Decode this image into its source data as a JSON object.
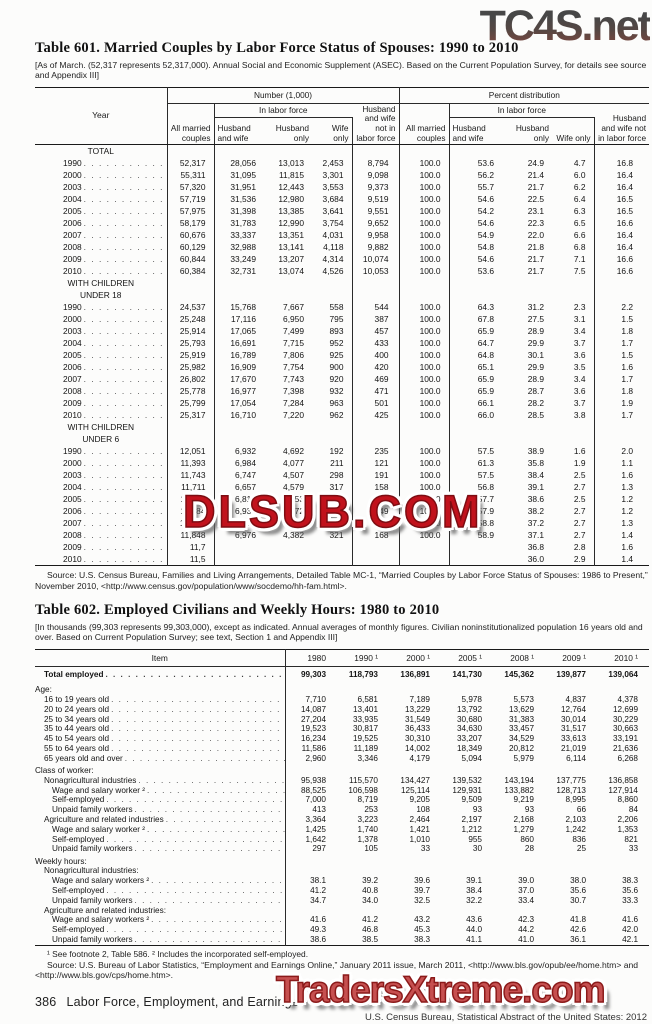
{
  "watermarks": {
    "top": "TC4S.net",
    "middle": "DLSUB.COM",
    "bottom": "TradersXtreme.com"
  },
  "colors": {
    "watermark_red": "#c1121c",
    "watermark_pink_red": "#c65050",
    "watermark_gray": "#3a3a3a",
    "watermark_maroon": "#6e3a32"
  },
  "table601": {
    "title": "Table 601. Married Couples by Labor Force Status of Spouses: 1990 to 2010",
    "note": "[As of March. (52,317 represents 52,317,000). Annual Social and Economic Supplement (ASEC). Based on the Current Population Survey, for details see source and Appendix III]",
    "header": {
      "year": "Year",
      "group_number": "Number (1,000)",
      "group_percent": "Percent distribution",
      "in_labor_force": "In labor force",
      "all_married": "All married couples",
      "husband_and_wife": "Husband and wife",
      "husband_only": "Husband only",
      "wife_only": "Wife only",
      "not_in_labor_force": "Husband and wife not in labor force"
    },
    "sections": [
      {
        "label": [
          "TOTAL"
        ],
        "rows": [
          [
            "1990",
            "52,317",
            "28,056",
            "13,013",
            "2,453",
            "8,794",
            "100.0",
            "53.6",
            "24.9",
            "4.7",
            "16.8"
          ],
          [
            "2000",
            "55,311",
            "31,095",
            "11,815",
            "3,301",
            "9,098",
            "100.0",
            "56.2",
            "21.4",
            "6.0",
            "16.4"
          ],
          [
            "2003",
            "57,320",
            "31,951",
            "12,443",
            "3,553",
            "9,373",
            "100.0",
            "55.7",
            "21.7",
            "6.2",
            "16.4"
          ],
          [
            "2004",
            "57,719",
            "31,536",
            "12,980",
            "3,684",
            "9,519",
            "100.0",
            "54.6",
            "22.5",
            "6.4",
            "16.5"
          ],
          [
            "2005",
            "57,975",
            "31,398",
            "13,385",
            "3,641",
            "9,551",
            "100.0",
            "54.2",
            "23.1",
            "6.3",
            "16.5"
          ],
          [
            "2006",
            "58,179",
            "31,783",
            "12,990",
            "3,754",
            "9,652",
            "100.0",
            "54.6",
            "22.3",
            "6.5",
            "16.6"
          ],
          [
            "2007",
            "60,676",
            "33,337",
            "13,351",
            "4,031",
            "9,958",
            "100.0",
            "54.9",
            "22.0",
            "6.6",
            "16.4"
          ],
          [
            "2008",
            "60,129",
            "32,988",
            "13,141",
            "4,118",
            "9,882",
            "100.0",
            "54.8",
            "21.8",
            "6.8",
            "16.4"
          ],
          [
            "2009",
            "60,844",
            "33,249",
            "13,207",
            "4,314",
            "10,074",
            "100.0",
            "54.6",
            "21.7",
            "7.1",
            "16.6"
          ],
          [
            "2010",
            "60,384",
            "32,731",
            "13,074",
            "4,526",
            "10,053",
            "100.0",
            "53.6",
            "21.7",
            "7.5",
            "16.6"
          ]
        ]
      },
      {
        "label": [
          "WITH CHILDREN",
          "UNDER 18"
        ],
        "rows": [
          [
            "1990",
            "24,537",
            "15,768",
            "7,667",
            "558",
            "544",
            "100.0",
            "64.3",
            "31.2",
            "2.3",
            "2.2"
          ],
          [
            "2000",
            "25,248",
            "17,116",
            "6,950",
            "795",
            "387",
            "100.0",
            "67.8",
            "27.5",
            "3.1",
            "1.5"
          ],
          [
            "2003",
            "25,914",
            "17,065",
            "7,499",
            "893",
            "457",
            "100.0",
            "65.9",
            "28.9",
            "3.4",
            "1.8"
          ],
          [
            "2004",
            "25,793",
            "16,691",
            "7,715",
            "952",
            "433",
            "100.0",
            "64.7",
            "29.9",
            "3.7",
            "1.7"
          ],
          [
            "2005",
            "25,919",
            "16,789",
            "7,806",
            "925",
            "400",
            "100.0",
            "64.8",
            "30.1",
            "3.6",
            "1.5"
          ],
          [
            "2006",
            "25,982",
            "16,909",
            "7,754",
            "900",
            "420",
            "100.0",
            "65.1",
            "29.9",
            "3.5",
            "1.6"
          ],
          [
            "2007",
            "26,802",
            "17,670",
            "7,743",
            "920",
            "469",
            "100.0",
            "65.9",
            "28.9",
            "3.4",
            "1.7"
          ],
          [
            "2008",
            "25,778",
            "16,977",
            "7,398",
            "932",
            "471",
            "100.0",
            "65.9",
            "28.7",
            "3.6",
            "1.8"
          ],
          [
            "2009",
            "25,799",
            "17,054",
            "7,284",
            "963",
            "501",
            "100.0",
            "66.1",
            "28.2",
            "3.7",
            "1.9"
          ],
          [
            "2010",
            "25,317",
            "16,710",
            "7,220",
            "962",
            "425",
            "100.0",
            "66.0",
            "28.5",
            "3.8",
            "1.7"
          ]
        ]
      },
      {
        "label": [
          "WITH CHILDREN",
          "UNDER 6"
        ],
        "rows": [
          [
            "1990",
            "12,051",
            "6,932",
            "4,692",
            "192",
            "235",
            "100.0",
            "57.5",
            "38.9",
            "1.6",
            "2.0"
          ],
          [
            "2000",
            "11,393",
            "6,984",
            "4,077",
            "211",
            "121",
            "100.0",
            "61.3",
            "35.8",
            "1.9",
            "1.1"
          ],
          [
            "2003",
            "11,743",
            "6,747",
            "4,507",
            "298",
            "191",
            "100.0",
            "57.5",
            "38.4",
            "2.5",
            "1.6"
          ],
          [
            "2004",
            "11,711",
            "6,657",
            "4,579",
            "317",
            "158",
            "100.0",
            "56.8",
            "39.1",
            "2.7",
            "1.3"
          ],
          [
            "2005",
            "11,802",
            "6,813",
            "4,553",
            "299",
            "137",
            "100.0",
            "57.7",
            "38.6",
            "2.5",
            "1.2"
          ],
          [
            "2006",
            "11,984",
            "6,939",
            "4,572",
            "324",
            "149",
            "100.0",
            "57.9",
            "38.2",
            "2.7",
            "1.2"
          ],
          [
            "2007",
            "12,468",
            "7,337",
            "4,633",
            "331",
            "167",
            "100.0",
            "58.8",
            "37.2",
            "2.7",
            "1.3"
          ],
          [
            "2008",
            "11,848",
            "6,976",
            "4,382",
            "321",
            "168",
            "100.0",
            "58.9",
            "37.1",
            "2.7",
            "1.4"
          ],
          [
            "2009",
            "11,7",
            "",
            "",
            "",
            "",
            "",
            "",
            "36.8",
            "2.8",
            "1.6"
          ],
          [
            "2010",
            "11,5",
            "",
            "",
            "",
            "",
            "",
            "",
            "36.0",
            "2.9",
            "1.4"
          ]
        ]
      }
    ],
    "source": "Source: U.S. Census Bureau, Families and Living Arrangements, Detailed Table MC-1, “Married Couples by Labor Force Status of Spouses: 1986 to Present,” November 2010, <http://www.census.gov/population/www/socdemo/hh-fam.html>."
  },
  "table602": {
    "title": "Table 602. Employed Civilians and Weekly Hours: 1980 to 2010",
    "note": "[In thousands (99,303 represents 99,303,000), except as indicated. Annual averages of monthly figures. Civilian noninstitutionalized population 16 years old and over. Based on Current Population Survey; see text, Section 1 and Appendix III]",
    "headers": [
      "Item",
      "1980",
      "1990 ¹",
      "2000 ¹",
      "2005 ¹",
      "2008 ¹",
      "2009 ¹",
      "2010 ¹"
    ],
    "rows": [
      {
        "l": "Total employed",
        "i": 1,
        "b": true,
        "v": [
          "99,303",
          "118,793",
          "136,891",
          "141,730",
          "145,362",
          "139,877",
          "139,064"
        ]
      },
      {
        "l": "Age:",
        "i": 0,
        "v": []
      },
      {
        "l": "16 to 19 years old",
        "i": 1,
        "v": [
          "7,710",
          "6,581",
          "7,189",
          "5,978",
          "5,573",
          "4,837",
          "4,378"
        ]
      },
      {
        "l": "20 to 24 years old",
        "i": 1,
        "v": [
          "14,087",
          "13,401",
          "13,229",
          "13,792",
          "13,629",
          "12,764",
          "12,699"
        ]
      },
      {
        "l": "25 to 34 years old",
        "i": 1,
        "v": [
          "27,204",
          "33,935",
          "31,549",
          "30,680",
          "31,383",
          "30,014",
          "30,229"
        ]
      },
      {
        "l": "35 to 44 years old",
        "i": 1,
        "v": [
          "19,523",
          "30,817",
          "36,433",
          "34,630",
          "33,457",
          "31,517",
          "30,663"
        ]
      },
      {
        "l": "45 to 54 years old",
        "i": 1,
        "v": [
          "16,234",
          "19,525",
          "30,310",
          "33,207",
          "34,529",
          "33,613",
          "33,191"
        ]
      },
      {
        "l": "55 to 64 years old",
        "i": 1,
        "v": [
          "11,586",
          "11,189",
          "14,002",
          "18,349",
          "20,812",
          "21,019",
          "21,636"
        ]
      },
      {
        "l": "65 years old and over",
        "i": 1,
        "v": [
          "2,960",
          "3,346",
          "4,179",
          "5,094",
          "5,979",
          "6,114",
          "6,268"
        ]
      },
      {
        "l": "Class of worker:",
        "i": 0,
        "v": []
      },
      {
        "l": "Nonagricultural industries",
        "i": 1,
        "v": [
          "95,938",
          "115,570",
          "134,427",
          "139,532",
          "143,194",
          "137,775",
          "136,858"
        ]
      },
      {
        "l": "Wage and salary worker ²",
        "i": 2,
        "v": [
          "88,525",
          "106,598",
          "125,114",
          "129,931",
          "133,882",
          "128,713",
          "127,914"
        ]
      },
      {
        "l": "Self-employed",
        "i": 2,
        "v": [
          "7,000",
          "8,719",
          "9,205",
          "9,509",
          "9,219",
          "8,995",
          "8,860"
        ]
      },
      {
        "l": "Unpaid family workers",
        "i": 2,
        "v": [
          "413",
          "253",
          "108",
          "93",
          "93",
          "66",
          "84"
        ]
      },
      {
        "l": "Agriculture and related industries",
        "i": 1,
        "v": [
          "3,364",
          "3,223",
          "2,464",
          "2,197",
          "2,168",
          "2,103",
          "2,206"
        ]
      },
      {
        "l": "Wage and salary worker ²",
        "i": 2,
        "v": [
          "1,425",
          "1,740",
          "1,421",
          "1,212",
          "1,279",
          "1,242",
          "1,353"
        ]
      },
      {
        "l": "Self-employed",
        "i": 2,
        "v": [
          "1,642",
          "1,378",
          "1,010",
          "955",
          "860",
          "836",
          "821"
        ]
      },
      {
        "l": "Unpaid family workers",
        "i": 2,
        "v": [
          "297",
          "105",
          "33",
          "30",
          "28",
          "25",
          "33"
        ]
      },
      {
        "l": "Weekly hours:",
        "i": 0,
        "v": []
      },
      {
        "l": "Nonagricultural industries:",
        "i": 1,
        "v": []
      },
      {
        "l": "Wage and salary workers ²",
        "i": 2,
        "v": [
          "38.1",
          "39.2",
          "39.6",
          "39.1",
          "39.0",
          "38.0",
          "38.3"
        ]
      },
      {
        "l": "Self-employed",
        "i": 2,
        "v": [
          "41.2",
          "40.8",
          "39.7",
          "38.4",
          "37.0",
          "35.6",
          "35.6"
        ]
      },
      {
        "l": "Unpaid family workers",
        "i": 2,
        "v": [
          "34.7",
          "34.0",
          "32.5",
          "32.2",
          "33.4",
          "30.7",
          "33.3"
        ]
      },
      {
        "l": "Agriculture and related industries:",
        "i": 1,
        "v": []
      },
      {
        "l": "Wage and salary workers ²",
        "i": 2,
        "v": [
          "41.6",
          "41.2",
          "43.2",
          "43.6",
          "42.3",
          "41.8",
          "41.6"
        ]
      },
      {
        "l": "Self-employed",
        "i": 2,
        "v": [
          "49.3",
          "46.8",
          "45.3",
          "44.0",
          "44.2",
          "42.6",
          "42.0"
        ]
      },
      {
        "l": "Unpaid family workers",
        "i": 2,
        "v": [
          "38.6",
          "38.5",
          "38.3",
          "41.1",
          "41.0",
          "36.1",
          "42.1"
        ]
      }
    ],
    "footnote": "¹ See footnote 2, Table 586. ² Includes the incorporated self-employed.",
    "source": "Source: U.S. Bureau of Labor Statistics, “Employment and Earnings Online,” January 2011 issue, March 2011, <http://www.bls.gov/opub/ee/home.htm> and <http://www.bls.gov/cps/home.htm>."
  },
  "footer": {
    "page": "386",
    "chapter": "Labor Force, Employment, and Earnings",
    "right": "U.S. Census Bureau, Statistical Abstract of the United States: 2012"
  }
}
